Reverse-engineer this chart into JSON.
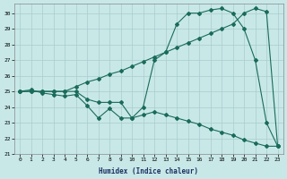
{
  "bg_color": "#c8e8e8",
  "grid_color": "#aacccc",
  "line_color": "#1a6b5a",
  "xlabel": "Humidex (Indice chaleur)",
  "xlim": [
    -0.5,
    23.5
  ],
  "ylim": [
    21,
    30.6
  ],
  "xticks": [
    0,
    1,
    2,
    3,
    4,
    5,
    6,
    7,
    8,
    9,
    10,
    11,
    12,
    13,
    14,
    15,
    16,
    17,
    18,
    19,
    20,
    21,
    22,
    23
  ],
  "yticks": [
    21,
    22,
    23,
    24,
    25,
    26,
    27,
    28,
    29,
    30
  ],
  "line1_x": [
    0,
    1,
    2,
    3,
    4,
    5,
    6,
    7,
    8,
    9,
    10,
    11,
    12,
    13,
    14,
    15,
    16,
    17,
    18,
    19,
    20,
    21,
    22,
    23
  ],
  "line1_y": [
    25.0,
    25.1,
    24.9,
    24.8,
    24.7,
    24.8,
    24.1,
    23.3,
    23.9,
    23.3,
    23.3,
    24.0,
    27.0,
    27.5,
    29.3,
    30.0,
    30.0,
    30.2,
    30.3,
    30.0,
    29.0,
    27.0,
    23.0,
    21.5
  ],
  "line2_x": [
    0,
    1,
    2,
    3,
    4,
    5,
    6,
    7,
    8,
    9,
    10,
    11,
    12,
    13,
    14,
    15,
    16,
    17,
    18,
    19,
    20,
    21,
    22,
    23
  ],
  "line2_y": [
    25.0,
    25.0,
    25.0,
    25.0,
    25.0,
    25.3,
    25.6,
    25.8,
    26.1,
    26.3,
    26.6,
    26.9,
    27.2,
    27.5,
    27.8,
    28.1,
    28.4,
    28.7,
    29.0,
    29.3,
    30.0,
    30.3,
    30.1,
    21.5
  ],
  "line3_x": [
    0,
    1,
    2,
    3,
    4,
    5,
    6,
    7,
    8,
    9,
    10,
    11,
    12,
    13,
    14,
    15,
    16,
    17,
    18,
    19,
    20,
    21,
    22,
    23
  ],
  "line3_y": [
    25.0,
    25.0,
    25.0,
    25.0,
    25.0,
    25.0,
    24.5,
    24.3,
    24.3,
    24.3,
    23.3,
    23.5,
    23.7,
    23.5,
    23.3,
    23.1,
    22.9,
    22.6,
    22.4,
    22.2,
    21.9,
    21.7,
    21.5,
    21.5
  ]
}
